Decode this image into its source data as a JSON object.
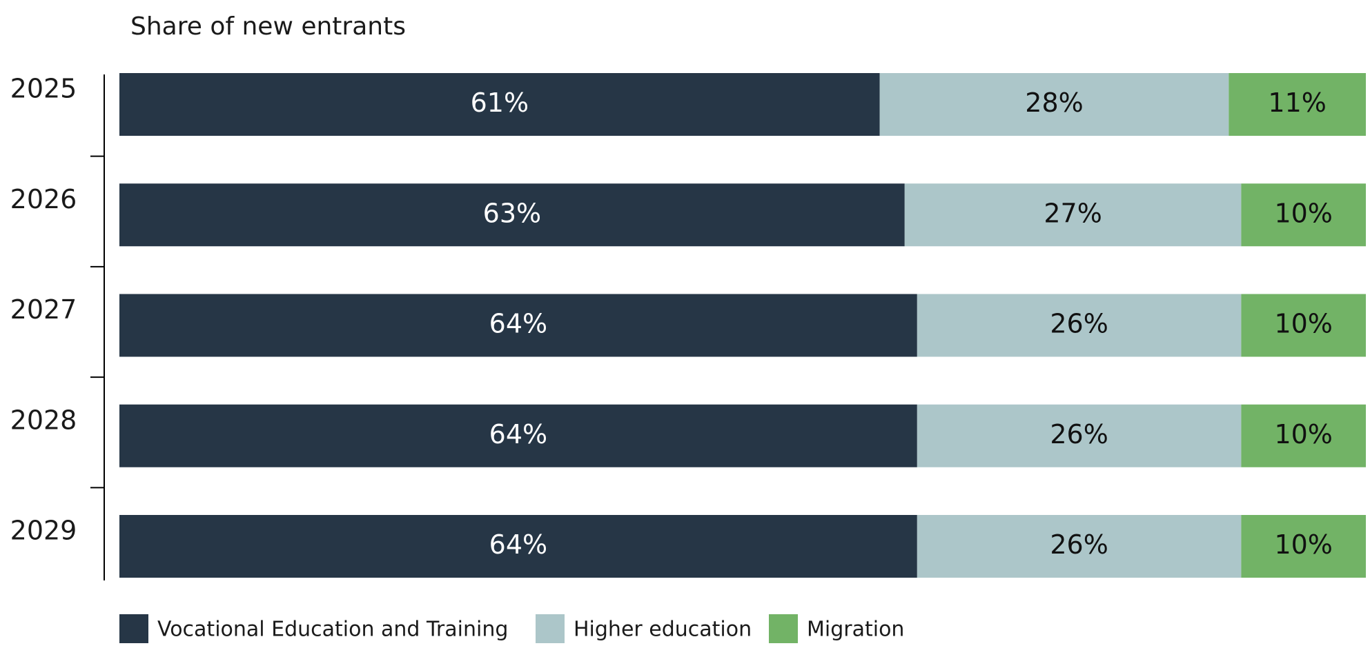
{
  "chart_data": {
    "type": "bar",
    "orientation": "horizontal",
    "stacked": true,
    "title": "Share of new entrants",
    "categories": [
      "2025",
      "2026",
      "2027",
      "2028",
      "2029"
    ],
    "series": [
      {
        "name": "Vocational Education and Training",
        "color": "#263646",
        "values": [
          61,
          63,
          64,
          64,
          64
        ],
        "value_labels": [
          "61%",
          "63%",
          "64%",
          "64%",
          "64%"
        ]
      },
      {
        "name": "Higher education",
        "color": "#acc6c9",
        "values": [
          28,
          27,
          26,
          26,
          26
        ],
        "value_labels": [
          "28%",
          "27%",
          "26%",
          "26%",
          "26%"
        ]
      },
      {
        "name": "Migration",
        "color": "#72b366",
        "values": [
          11,
          10,
          10,
          10,
          10
        ],
        "value_labels": [
          "11%",
          "10%",
          "10%",
          "10%",
          "10%"
        ]
      }
    ],
    "legend": "bottom-left"
  }
}
